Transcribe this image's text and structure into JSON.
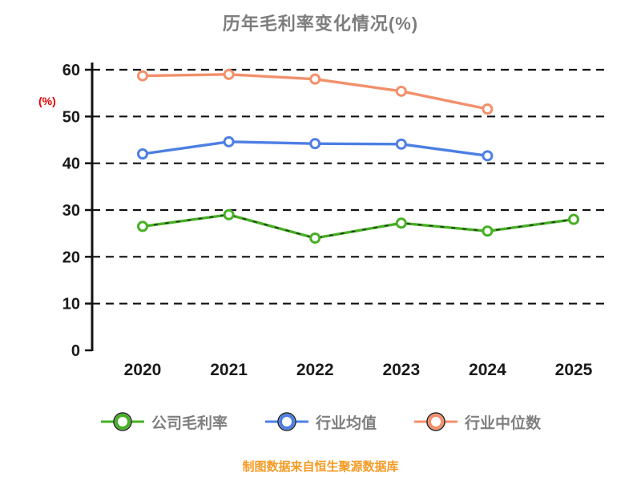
{
  "chart_data": {
    "type": "line",
    "title": "历年毛利率变化情况(%)",
    "ylabel": "(%)",
    "footer": "制图数据来自恒生聚源数据库",
    "x": [
      "2020",
      "2021",
      "2022",
      "2023",
      "2024",
      "2025"
    ],
    "ylim": [
      0,
      60
    ],
    "yticks": [
      0,
      10,
      20,
      30,
      40,
      50,
      60
    ],
    "grid": "horizontal-dashed",
    "legend_position": "bottom",
    "colors": {
      "title": "#7d7d7d",
      "ylabel": "#e60000",
      "footer": "#f59a23",
      "axis": "#111111",
      "gridline": "#111111"
    },
    "series": [
      {
        "name": "公司毛利率",
        "color": "#47b024",
        "overlay_dashed": true,
        "values": [
          26.5,
          29,
          24,
          27.2,
          25.5,
          28
        ]
      },
      {
        "name": "行业均值",
        "color": "#4d7fe3",
        "overlay_dashed": false,
        "values": [
          42,
          44.6,
          44.2,
          44.1,
          41.6,
          null
        ]
      },
      {
        "name": "行业中位数",
        "color": "#f2906b",
        "overlay_dashed": false,
        "values": [
          58.7,
          59,
          58,
          55.4,
          51.6,
          null
        ]
      }
    ]
  }
}
